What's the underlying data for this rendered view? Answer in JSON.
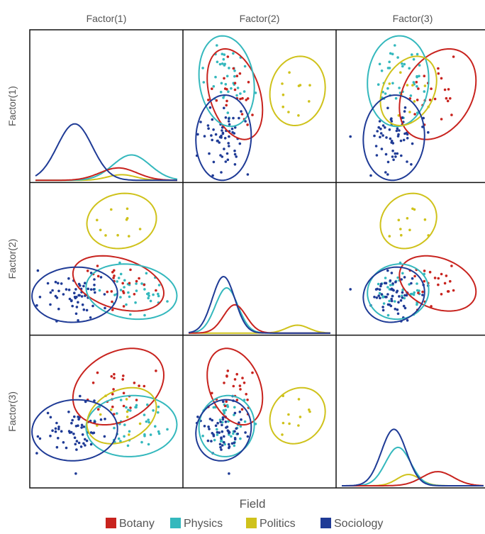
{
  "chart_data": {
    "type": "scatter",
    "title": "",
    "variables": [
      "Factor(1)",
      "Factor(2)",
      "Factor(3)"
    ],
    "legend": {
      "title": "Field",
      "placement": "bottom",
      "entries": [
        {
          "name": "Botany",
          "color": "#c8231e"
        },
        {
          "name": "Physics",
          "color": "#34b8bd"
        },
        {
          "name": "Politics",
          "color": "#cfc21b"
        },
        {
          "name": "Sociology",
          "color": "#1f3b96"
        }
      ]
    },
    "grid": false,
    "axis_ticks": false,
    "diagonal": "density",
    "off_diagonal": "scatter with 95% ellipses",
    "ellipses": [
      {
        "group": "Botany",
        "factor_means": [
          0.8,
          0.55,
          1.6
        ],
        "factor_sd": [
          0.85,
          0.55,
          0.75
        ],
        "corr": {
          "1-2": -0.35,
          "1-3": 0.3,
          "2-3": -0.3
        }
      },
      {
        "group": "Physics",
        "factor_means": [
          1.4,
          0.15,
          -0.3
        ],
        "factor_sd": [
          0.85,
          0.55,
          0.6
        ],
        "corr": {
          "1-2": -0.15,
          "1-3": 0.05,
          "2-3": 0.05
        }
      },
      {
        "group": "Politics",
        "factor_means": [
          0.95,
          3.6,
          0.2
        ],
        "factor_sd": [
          0.65,
          0.55,
          0.55
        ],
        "corr": {
          "1-2": 0.1,
          "1-3": 0.3,
          "2-3": 0.15
        }
      },
      {
        "group": "Sociology",
        "factor_means": [
          -1.2,
          0.0,
          -0.5
        ],
        "factor_sd": [
          0.8,
          0.55,
          0.6
        ],
        "corr": {
          "1-2": 0.05,
          "1-3": 0.05,
          "2-3": 0.1
        }
      }
    ],
    "density_peaks": {
      "Factor(1)": {
        "Botany": 0.22,
        "Physics": 0.45,
        "Politics": 0.1,
        "Sociology": 1.0
      },
      "Factor(2)": {
        "Botany": 0.5,
        "Physics": 0.8,
        "Politics": 0.14,
        "Sociology": 1.0
      },
      "Factor(3)": {
        "Botany": 0.25,
        "Physics": 0.68,
        "Politics": 0.2,
        "Sociology": 1.0
      }
    }
  }
}
